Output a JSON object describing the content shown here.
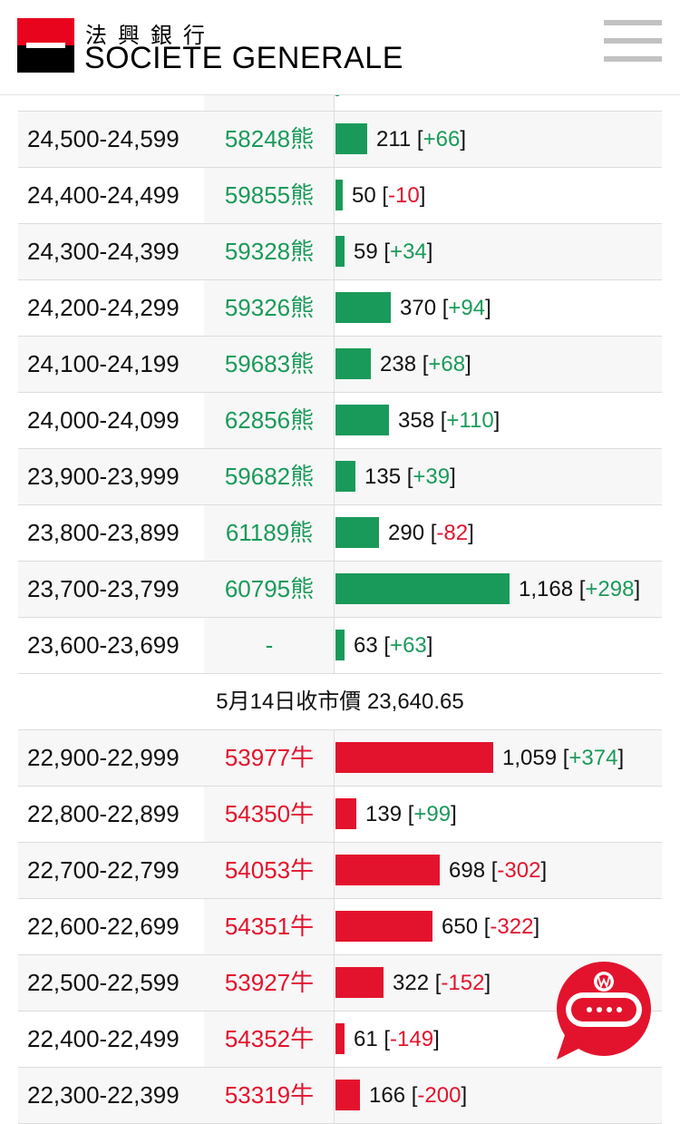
{
  "header": {
    "brand_cn": "法興銀行",
    "brand_en": "SOCIETE GENERALE",
    "colors": {
      "red": "#e9041e",
      "black": "#000000"
    }
  },
  "bear_rows": [
    {
      "range": "24,500-24,599",
      "code": "58248熊",
      "volume": "211",
      "change": "+66",
      "bar": 0.18
    },
    {
      "range": "24,400-24,499",
      "code": "59855熊",
      "volume": "50",
      "change": "-10",
      "bar": 0.043
    },
    {
      "range": "24,300-24,399",
      "code": "59328熊",
      "volume": "59",
      "change": "+34",
      "bar": 0.05
    },
    {
      "range": "24,200-24,299",
      "code": "59326熊",
      "volume": "370",
      "change": "+94",
      "bar": 0.317
    },
    {
      "range": "24,100-24,199",
      "code": "59683熊",
      "volume": "238",
      "change": "+68",
      "bar": 0.204
    },
    {
      "range": "24,000-24,099",
      "code": "62856熊",
      "volume": "358",
      "change": "+110",
      "bar": 0.306
    },
    {
      "range": "23,900-23,999",
      "code": "59682熊",
      "volume": "135",
      "change": "+39",
      "bar": 0.116
    },
    {
      "range": "23,800-23,899",
      "code": "61189熊",
      "volume": "290",
      "change": "-82",
      "bar": 0.248
    },
    {
      "range": "23,700-23,799",
      "code": "60795熊",
      "volume": "1,168",
      "change": "+298",
      "bar": 1.0
    },
    {
      "range": "23,600-23,699",
      "code": "-",
      "volume": "63",
      "change": "+63",
      "bar": 0.054
    }
  ],
  "close_label": "5月14日收市價 23,640.65",
  "bull_rows": [
    {
      "range": "22,900-22,999",
      "code": "53977牛",
      "volume": "1,059",
      "change": "+374",
      "bar": 0.907
    },
    {
      "range": "22,800-22,899",
      "code": "54350牛",
      "volume": "139",
      "change": "+99",
      "bar": 0.119
    },
    {
      "range": "22,700-22,799",
      "code": "54053牛",
      "volume": "698",
      "change": "-302",
      "bar": 0.598
    },
    {
      "range": "22,600-22,699",
      "code": "54351牛",
      "volume": "650",
      "change": "-322",
      "bar": 0.557
    },
    {
      "range": "22,500-22,599",
      "code": "53927牛",
      "volume": "322",
      "change": "-152",
      "bar": 0.276
    },
    {
      "range": "22,400-22,499",
      "code": "54352牛",
      "volume": "61",
      "change": "-149",
      "bar": 0.052
    },
    {
      "range": "22,300-22,399",
      "code": "53319牛",
      "volume": "166",
      "change": "-200",
      "bar": 0.142
    }
  ],
  "colors": {
    "bear": "#1a9a5a",
    "bull": "#e3132d",
    "up": "#1a9a5a",
    "down": "#e3132d"
  },
  "chat_widget": {
    "icon": "chat-bubble-icon",
    "color": "#e3132d"
  }
}
